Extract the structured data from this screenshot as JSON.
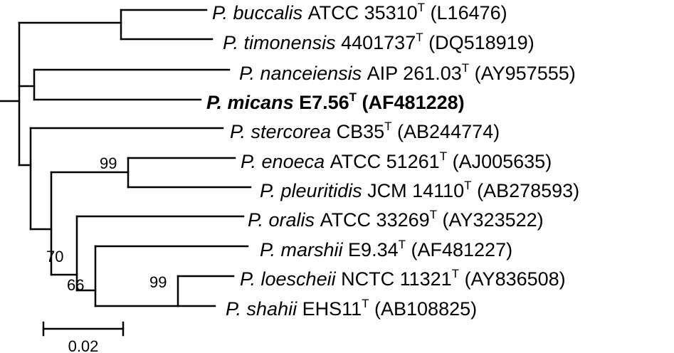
{
  "taxa": [
    {
      "species": "P. buccalis",
      "strain": "ATCC 35310",
      "type_mark": "T",
      "accession": "(L16476)",
      "bold": false
    },
    {
      "species": "P. timonensis",
      "strain": "4401737",
      "type_mark": "T",
      "accession": "(DQ518919)",
      "bold": false
    },
    {
      "species": "P. nanceiensis",
      "strain": "AIP 261.03",
      "type_mark": "T",
      "accession": "(AY957555)",
      "bold": false
    },
    {
      "species": "P. micans",
      "strain": "E7.56",
      "type_mark": "T",
      "accession": "(AF481228)",
      "bold": true
    },
    {
      "species": "P. stercorea",
      "strain": "CB35",
      "type_mark": "T",
      "accession": "(AB244774)",
      "bold": false
    },
    {
      "species": "P. enoeca",
      "strain": "ATCC 51261",
      "type_mark": "T",
      "accession": "(AJ005635)",
      "bold": false
    },
    {
      "species": "P. pleuritidis",
      "strain": "JCM 14110",
      "type_mark": "T",
      "accession": "(AB278593)",
      "bold": false
    },
    {
      "species": "P. oralis",
      "strain": "ATCC 33269",
      "type_mark": "T",
      "accession": "(AY323522)",
      "bold": false
    },
    {
      "species": "P. marshii",
      "strain": "E9.34",
      "type_mark": "T",
      "accession": "(AF481227)",
      "bold": false
    },
    {
      "species": "P. loescheii",
      "strain": "NCTC 11321",
      "type_mark": "T",
      "accession": "(AY836508)",
      "bold": false
    },
    {
      "species": "P. shahii",
      "strain": "EHS11",
      "type_mark": "T",
      "accession": "(AB108825)",
      "bold": false
    }
  ],
  "bootstrap": [
    "99",
    "70",
    "66",
    "99"
  ],
  "scale_bar": {
    "label": "0.02"
  }
}
